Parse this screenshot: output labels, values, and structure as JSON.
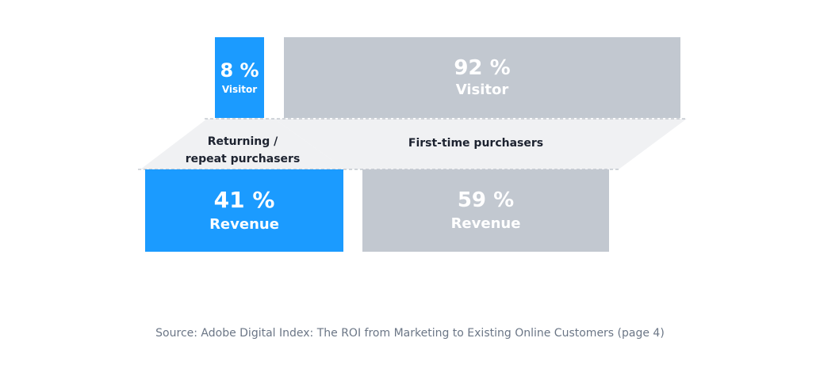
{
  "colors": {
    "returning": "#1b9bff",
    "first_time": "#c2c8d0",
    "connector": "#f0f1f3",
    "dashed_line": "#a9b0ba",
    "label_text": "#1d2330",
    "source_text": "#6b7686"
  },
  "chart_data": {
    "type": "comparison-flow",
    "title": "",
    "segments": [
      {
        "key": "returning",
        "name": "Returning / repeat purchasers",
        "label_line1": "Returning /",
        "label_line2": "repeat purchasers",
        "visitor_pct": 8,
        "revenue_pct": 41
      },
      {
        "key": "first_time",
        "name": "First-time purchasers",
        "label_line1": "First-time purchasers",
        "visitor_pct": 92,
        "revenue_pct": 59
      }
    ],
    "tiles": {
      "returning_visitor": {
        "value": "8 %",
        "label": "Visitor"
      },
      "first_time_visitor": {
        "value": "92 %",
        "label": "Visitor"
      },
      "returning_revenue": {
        "value": "41 %",
        "label": "Revenue"
      },
      "first_time_revenue": {
        "value": "59 %",
        "label": "Revenue"
      }
    },
    "metrics": [
      "Visitor",
      "Revenue"
    ]
  },
  "source": "Source: Adobe Digital Index: The ROI from Marketing to Existing Online Customers (page 4)"
}
